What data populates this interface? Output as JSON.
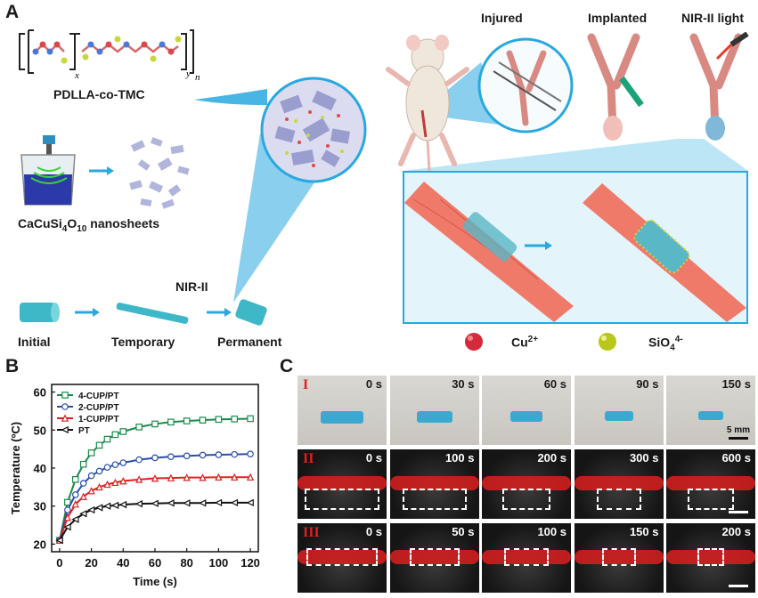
{
  "panels": {
    "A": "A",
    "B": "B",
    "C": "C"
  },
  "panelA": {
    "polymer_label": "PDLLA-co-TMC",
    "formula_sub_x": "x",
    "formula_sub_y": "y",
    "formula_sub_n": "n",
    "nanosheet_label_pre": "CaCuSi",
    "nanosheet_sub1": "4",
    "nanosheet_mid": "O",
    "nanosheet_sub2": "10",
    "nanosheet_post": " nanosheets",
    "nir_label": "NIR-II",
    "stages": [
      "Initial",
      "Temporary",
      "Permanent"
    ],
    "surgery": [
      "Injured",
      "Implanted",
      "NIR-II light"
    ],
    "ion_cu": "Cu",
    "ion_cu_sup": "2+",
    "ion_si": "SiO",
    "ion_si_sub": "4",
    "ion_si_sup": "4-"
  },
  "panelC": {
    "rows": [
      "I",
      "II",
      "III"
    ],
    "times": [
      [
        "0 s",
        "30 s",
        "60 s",
        "90 s",
        "150 s"
      ],
      [
        "0 s",
        "100 s",
        "200 s",
        "300 s",
        "600 s"
      ],
      [
        "0 s",
        "50 s",
        "100 s",
        "150 s",
        "200 s"
      ]
    ],
    "scale_bar": "5 mm"
  },
  "colors": {
    "pt": "#111111",
    "cup1": "#e02020",
    "cup2": "#2a4fa8",
    "cup4": "#1a8a4a",
    "accent": "#29a8df"
  },
  "chart_data": {
    "type": "line",
    "xlabel": "Time (s)",
    "ylabel": "Temperature (ºC)",
    "xlim": [
      -5,
      125
    ],
    "ylim": [
      18,
      62
    ],
    "xticks": [
      0,
      20,
      40,
      60,
      80,
      100,
      120
    ],
    "yticks": [
      20,
      30,
      40,
      50,
      60
    ],
    "legend_position": "top-left",
    "series": [
      {
        "name": "4-CUP/PT",
        "color": "#1a8a4a",
        "marker": "square",
        "x": [
          0,
          5,
          10,
          15,
          20,
          25,
          30,
          35,
          40,
          50,
          60,
          70,
          80,
          90,
          100,
          110,
          120
        ],
        "y": [
          21,
          31,
          37,
          41,
          44,
          46,
          47.6,
          48.8,
          49.6,
          50.8,
          51.6,
          52.1,
          52.4,
          52.6,
          52.8,
          52.9,
          53
        ]
      },
      {
        "name": "2-CUP/PT",
        "color": "#2a4fa8",
        "marker": "circle",
        "x": [
          0,
          5,
          10,
          15,
          20,
          25,
          30,
          35,
          40,
          50,
          60,
          70,
          80,
          90,
          100,
          110,
          120
        ],
        "y": [
          21,
          29,
          33,
          36,
          38,
          39.2,
          40.2,
          40.9,
          41.4,
          42.2,
          42.7,
          43,
          43.2,
          43.4,
          43.5,
          43.6,
          43.7
        ]
      },
      {
        "name": "1-CUP/PT",
        "color": "#e02020",
        "marker": "triangle-up",
        "x": [
          0,
          5,
          10,
          15,
          20,
          25,
          30,
          35,
          40,
          50,
          60,
          70,
          80,
          90,
          100,
          110,
          120
        ],
        "y": [
          21,
          27,
          30.5,
          32.5,
          34,
          35,
          35.7,
          36.2,
          36.6,
          37,
          37.3,
          37.4,
          37.5,
          37.5,
          37.6,
          37.6,
          37.6
        ]
      },
      {
        "name": "PT",
        "color": "#111111",
        "marker": "triangle-left",
        "x": [
          0,
          5,
          10,
          15,
          20,
          25,
          30,
          35,
          40,
          50,
          60,
          70,
          80,
          90,
          100,
          110,
          120
        ],
        "y": [
          21,
          24.5,
          26.5,
          28,
          29,
          29.6,
          30,
          30.2,
          30.4,
          30.6,
          30.7,
          30.8,
          30.8,
          30.8,
          30.9,
          30.9,
          30.9
        ]
      }
    ]
  }
}
